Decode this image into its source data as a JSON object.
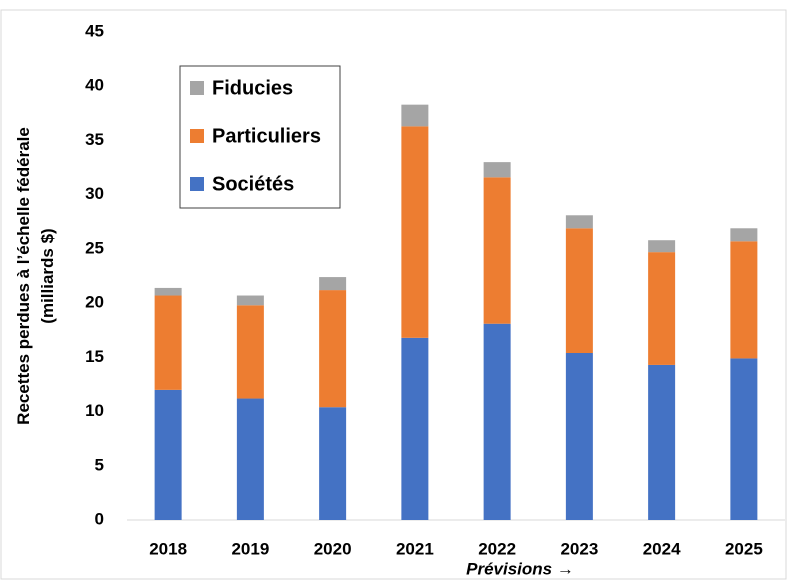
{
  "chart_data": {
    "type": "stacked_bar",
    "y_label": [
      "Recettes perdues à l’échelle fédérale",
      "(milliards $)"
    ],
    "annotation": "Prévisions →",
    "categories": [
      "2018",
      "2019",
      "2020",
      "2021",
      "2022",
      "2023",
      "2024",
      "2025"
    ],
    "series": [
      {
        "name": "Sociétés",
        "color": "#4472c4",
        "values": [
          12.0,
          11.2,
          10.4,
          16.8,
          18.1,
          15.4,
          14.3,
          14.9
        ]
      },
      {
        "name": "Particuliers",
        "color": "#ed7d31",
        "values": [
          8.7,
          8.6,
          10.8,
          19.5,
          13.5,
          11.5,
          10.4,
          10.8
        ]
      },
      {
        "name": "Fiducies",
        "color": "#a5a5a5",
        "values": [
          0.7,
          0.9,
          1.2,
          2.0,
          1.4,
          1.2,
          1.1,
          1.2
        ]
      }
    ],
    "ylim": [
      0,
      45
    ],
    "yticks": [
      0,
      5,
      10,
      15,
      20,
      25,
      30,
      35,
      40,
      45
    ],
    "grid": false,
    "legend": "upper left"
  }
}
